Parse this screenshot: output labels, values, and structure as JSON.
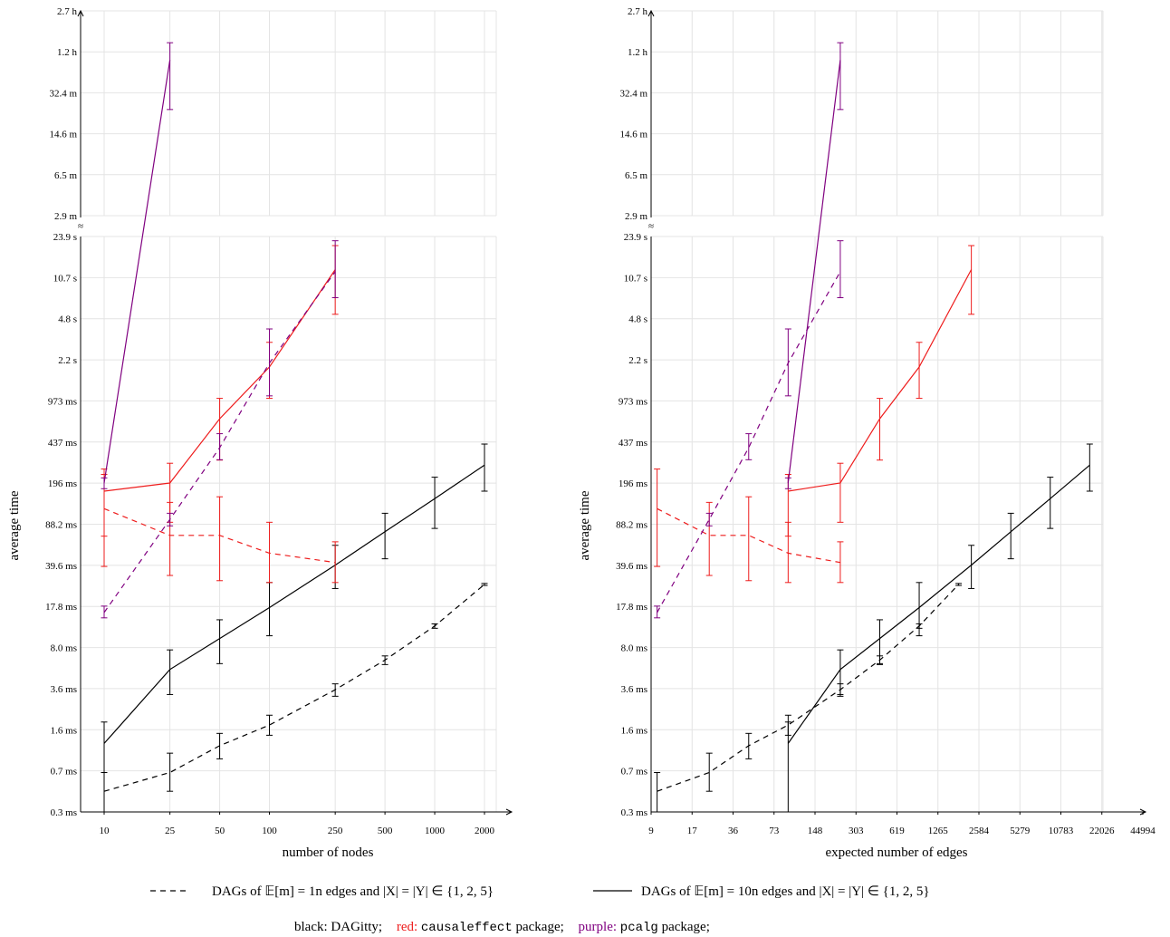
{
  "colors": {
    "daggity": "#000000",
    "causaleffect": "#ee1c1c",
    "pcalg": "#800080"
  },
  "legend": {
    "dashed_label": "DAGs of 𝔼[m] = 1n edges and |X| = |Y| ∈ {1, 2, 5}",
    "solid_label": "DAGs of 𝔼[m] = 10n edges and |X| = |Y| ∈ {1, 2, 5}",
    "black_key": "black:",
    "black_text": "DAGitty;",
    "red_key": "red:",
    "red_pkg": "causaleffect",
    "red_text": "package;",
    "purple_key": "purple:",
    "purple_pkg": "pcalg",
    "purple_text": "package;"
  },
  "chart_data": [
    {
      "type": "line",
      "xlabel": "number of nodes",
      "ylabel": "average time",
      "xscale": "log",
      "yscale": "log",
      "axis_break": "≈",
      "x_ticks": [
        "10",
        "25",
        "50",
        "100",
        "250",
        "500",
        "1000",
        "2000"
      ],
      "y_ticks": [
        "0.3 ms",
        "0.7 ms",
        "1.6 ms",
        "3.6 ms",
        "8.0 ms",
        "17.8 ms",
        "39.6 ms",
        "88.2 ms",
        "196 ms",
        "437 ms",
        "973 ms",
        "2.2 s",
        "4.8 s",
        "10.7 s",
        "23.9 s"
      ],
      "y_ticks_upper": [
        "2.9 m",
        "6.5 m",
        "14.6 m",
        "32.4 m",
        "1.2 h",
        "2.7 h"
      ],
      "grid": true,
      "series": [
        {
          "tool": "DAGitty",
          "style": "dashed",
          "x": [
            10,
            25,
            50,
            100,
            250,
            500,
            1000,
            2000
          ],
          "y_ms": [
            0.45,
            0.65,
            1.1,
            1.65,
            3.3,
            5.9,
            11.5,
            26
          ],
          "err_low": [
            0.3,
            0.45,
            0.85,
            1.35,
            2.9,
            5.4,
            11,
            25.5
          ],
          "err_high": [
            0.65,
            0.95,
            1.4,
            2.0,
            3.7,
            6.4,
            12,
            26.5
          ]
        },
        {
          "tool": "DAGitty",
          "style": "solid",
          "x": [
            10,
            25,
            50,
            100,
            250,
            500,
            1000,
            2000
          ],
          "y_ms": [
            1.15,
            4.9,
            9.0,
            16.5,
            38,
            73,
            140,
            270
          ],
          "err_low": [
            0.3,
            3.0,
            5.5,
            9.5,
            24,
            43,
            78,
            162
          ],
          "err_high": [
            1.75,
            7.2,
            13.0,
            27,
            56,
            105,
            213,
            408
          ]
        },
        {
          "tool": "causaleffect",
          "style": "dashed",
          "x": [
            10,
            25,
            50,
            100,
            250
          ],
          "y_ms": [
            115,
            68,
            68,
            48,
            40
          ],
          "err_low": [
            37,
            31,
            28,
            27,
            27
          ],
          "err_high": [
            250,
            130,
            145,
            88,
            60
          ]
        },
        {
          "tool": "causaleffect",
          "style": "solid",
          "x": [
            10,
            25,
            50,
            100,
            250
          ],
          "y_ms": [
            162,
            190,
            670,
            1850,
            12500
          ],
          "err_low": [
            67,
            88,
            298,
            1000,
            5200
          ],
          "err_high": [
            225,
            280,
            1000,
            3000,
            20000
          ]
        },
        {
          "tool": "pcalg",
          "style": "dashed",
          "x": [
            10,
            25,
            50,
            100,
            250
          ],
          "y_ms": [
            15,
            93,
            380,
            2000,
            12000
          ],
          "err_low": [
            13.5,
            82,
            300,
            1050,
            7200
          ],
          "err_high": [
            17,
            105,
            500,
            3900,
            22000
          ]
        },
        {
          "tool": "pcalg",
          "style": "solid",
          "x": [
            10,
            25
          ],
          "y_ms": [
            190,
            3700000
          ],
          "err_low": [
            170,
            1400000
          ],
          "err_high": [
            210,
            5200000
          ]
        }
      ]
    },
    {
      "type": "line",
      "xlabel": "expected number of edges",
      "ylabel": "average time",
      "xscale": "log",
      "yscale": "log",
      "axis_break": "≈",
      "x_ticks": [
        "9",
        "17",
        "36",
        "73",
        "148",
        "303",
        "619",
        "1265",
        "2584",
        "5279",
        "10783",
        "22026",
        "44994"
      ],
      "y_ticks": [
        "0.3 ms",
        "0.7 ms",
        "1.6 ms",
        "3.6 ms",
        "8.0 ms",
        "17.8 ms",
        "39.6 ms",
        "88.2 ms",
        "196 ms",
        "437 ms",
        "973 ms",
        "2.2 s",
        "4.8 s",
        "10.7 s",
        "23.9 s"
      ],
      "y_ticks_upper": [
        "2.9 m",
        "6.5 m",
        "14.6 m",
        "32.4 m",
        "1.2 h",
        "2.7 h"
      ],
      "grid": true,
      "series": [
        {
          "tool": "DAGitty",
          "style": "dashed",
          "x": [
            10,
            25,
            50,
            100,
            250,
            500,
            1000,
            2000
          ],
          "y_ms": [
            0.45,
            0.65,
            1.1,
            1.65,
            3.3,
            5.9,
            11.5,
            26
          ],
          "err_low": [
            0.3,
            0.45,
            0.85,
            1.35,
            2.9,
            5.4,
            11,
            25.5
          ],
          "err_high": [
            0.65,
            0.95,
            1.4,
            2.0,
            3.7,
            6.4,
            12,
            26.5
          ]
        },
        {
          "tool": "DAGitty",
          "style": "solid",
          "x": [
            100,
            250,
            500,
            1000,
            2500,
            5000,
            10000,
            20000
          ],
          "y_ms": [
            1.15,
            4.9,
            9.0,
            16.5,
            38,
            73,
            140,
            270
          ],
          "err_low": [
            0.3,
            3.0,
            5.5,
            9.5,
            24,
            43,
            78,
            162
          ],
          "err_high": [
            1.75,
            7.2,
            13.0,
            27,
            56,
            105,
            213,
            408
          ]
        },
        {
          "tool": "causaleffect",
          "style": "dashed",
          "x": [
            10,
            25,
            50,
            100,
            250
          ],
          "y_ms": [
            115,
            68,
            68,
            48,
            40
          ],
          "err_low": [
            37,
            31,
            28,
            27,
            27
          ],
          "err_high": [
            250,
            130,
            145,
            88,
            60
          ]
        },
        {
          "tool": "causaleffect",
          "style": "solid",
          "x": [
            100,
            250,
            500,
            1000,
            2500
          ],
          "y_ms": [
            162,
            190,
            670,
            1850,
            12500
          ],
          "err_low": [
            67,
            88,
            298,
            1000,
            5200
          ],
          "err_high": [
            225,
            280,
            1000,
            3000,
            20000
          ]
        },
        {
          "tool": "pcalg",
          "style": "dashed",
          "x": [
            10,
            25,
            50,
            100,
            250
          ],
          "y_ms": [
            15,
            93,
            380,
            2000,
            12000
          ],
          "err_low": [
            13.5,
            82,
            300,
            1050,
            7200
          ],
          "err_high": [
            17,
            105,
            500,
            3900,
            22000
          ]
        },
        {
          "tool": "pcalg",
          "style": "solid",
          "x": [
            100,
            250
          ],
          "y_ms": [
            190,
            3700000
          ],
          "err_low": [
            170,
            1400000
          ],
          "err_high": [
            210,
            5200000
          ]
        }
      ]
    }
  ]
}
